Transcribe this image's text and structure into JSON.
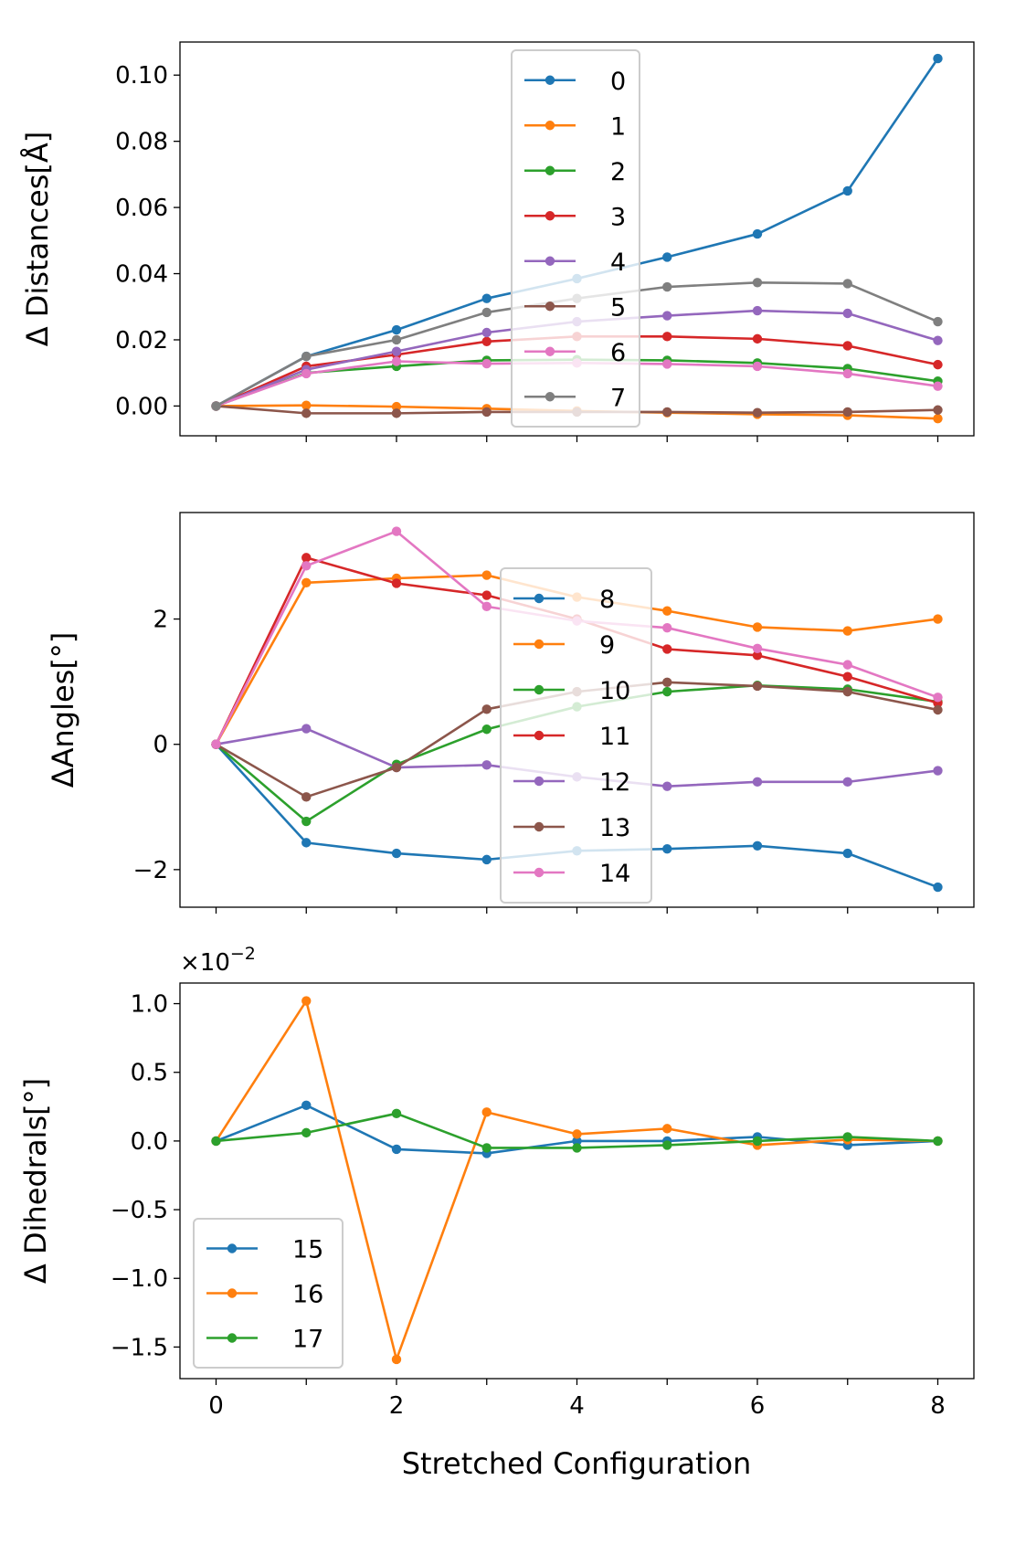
{
  "figure": {
    "xlabel": "Stretched Configuration"
  },
  "chart_data": [
    {
      "type": "line",
      "title": "",
      "xlabel": "",
      "ylabel": "Δ Distances[Å]",
      "xlim": [
        -0.4,
        8.4
      ],
      "ylim": [
        -0.009,
        0.11
      ],
      "x": [
        0,
        1,
        2,
        3,
        4,
        5,
        6,
        7,
        8
      ],
      "xticks": [
        0,
        1,
        2,
        3,
        4,
        5,
        6,
        7,
        8
      ],
      "show_xticklabels": false,
      "yticks": [
        0.0,
        0.02,
        0.04,
        0.06,
        0.08,
        0.1
      ],
      "ytick_labels": [
        "0.00",
        "0.02",
        "0.04",
        "0.06",
        "0.08",
        "0.10"
      ],
      "legend_position": "upper-center",
      "series": [
        {
          "name": "0",
          "color": "#1f77b4",
          "values": [
            0,
            0.015,
            0.023,
            0.0325,
            0.0385,
            0.045,
            0.052,
            0.065,
            0.105
          ]
        },
        {
          "name": "1",
          "color": "#ff7f0e",
          "values": [
            0,
            0.0002,
            -0.0002,
            -0.0008,
            -0.0015,
            -0.002,
            -0.0025,
            -0.0028,
            -0.0038
          ]
        },
        {
          "name": "2",
          "color": "#2ca02c",
          "values": [
            0,
            0.01,
            0.012,
            0.0138,
            0.014,
            0.0138,
            0.013,
            0.0113,
            0.0075
          ]
        },
        {
          "name": "3",
          "color": "#d62728",
          "values": [
            0,
            0.012,
            0.0155,
            0.0195,
            0.021,
            0.021,
            0.0203,
            0.0182,
            0.0125
          ]
        },
        {
          "name": "4",
          "color": "#9467bd",
          "values": [
            0,
            0.011,
            0.0165,
            0.0222,
            0.0255,
            0.0273,
            0.0288,
            0.028,
            0.0198
          ]
        },
        {
          "name": "5",
          "color": "#8c564b",
          "values": [
            0,
            -0.0022,
            -0.0022,
            -0.0018,
            -0.0018,
            -0.0018,
            -0.002,
            -0.0018,
            -0.0012
          ]
        },
        {
          "name": "6",
          "color": "#e377c2",
          "values": [
            0,
            0.0098,
            0.0135,
            0.0128,
            0.013,
            0.0127,
            0.012,
            0.0098,
            0.006
          ]
        },
        {
          "name": "7",
          "color": "#7f7f7f",
          "values": [
            0,
            0.015,
            0.02,
            0.0283,
            0.0325,
            0.036,
            0.0373,
            0.037,
            0.0255
          ]
        }
      ]
    },
    {
      "type": "line",
      "title": "",
      "xlabel": "",
      "ylabel": "ΔAngles[°]",
      "xlim": [
        -0.4,
        8.4
      ],
      "ylim": [
        -2.6,
        3.7
      ],
      "x": [
        0,
        1,
        2,
        3,
        4,
        5,
        6,
        7,
        8
      ],
      "xticks": [
        0,
        1,
        2,
        3,
        4,
        5,
        6,
        7,
        8
      ],
      "show_xticklabels": false,
      "yticks": [
        -2,
        0,
        2
      ],
      "ytick_labels": [
        "−2",
        "0",
        "2"
      ],
      "legend_position": "center",
      "series": [
        {
          "name": "8",
          "color": "#1f77b4",
          "values": [
            0,
            -1.57,
            -1.74,
            -1.84,
            -1.7,
            -1.67,
            -1.62,
            -1.74,
            -2.28
          ]
        },
        {
          "name": "9",
          "color": "#ff7f0e",
          "values": [
            0,
            2.58,
            2.65,
            2.7,
            2.35,
            2.13,
            1.87,
            1.81,
            2.0
          ]
        },
        {
          "name": "10",
          "color": "#2ca02c",
          "values": [
            0,
            -1.23,
            -0.32,
            0.24,
            0.6,
            0.84,
            0.94,
            0.88,
            0.68
          ]
        },
        {
          "name": "11",
          "color": "#d62728",
          "values": [
            0,
            2.98,
            2.57,
            2.38,
            2.0,
            1.52,
            1.42,
            1.08,
            0.66
          ]
        },
        {
          "name": "12",
          "color": "#9467bd",
          "values": [
            0,
            0.25,
            -0.37,
            -0.33,
            -0.52,
            -0.67,
            -0.6,
            -0.6,
            -0.42
          ]
        },
        {
          "name": "13",
          "color": "#8c564b",
          "values": [
            0,
            -0.84,
            -0.37,
            0.56,
            0.84,
            0.99,
            0.93,
            0.84,
            0.55
          ]
        },
        {
          "name": "14",
          "color": "#e377c2",
          "values": [
            0,
            2.85,
            3.4,
            2.2,
            1.97,
            1.86,
            1.53,
            1.27,
            0.75
          ]
        }
      ]
    },
    {
      "type": "line",
      "title": "",
      "xlabel": "Stretched Configuration",
      "ylabel": "Δ Dihedrals[°]",
      "xlim": [
        -0.4,
        8.4
      ],
      "ylim": [
        -1.73,
        1.15
      ],
      "x": [
        0,
        1,
        2,
        3,
        4,
        5,
        6,
        7,
        8
      ],
      "xticks": [
        0,
        2,
        4,
        6,
        8
      ],
      "xtick_labels": [
        "0",
        "2",
        "4",
        "6",
        "8"
      ],
      "minor_xticks": [
        1,
        3,
        5,
        7
      ],
      "show_xticklabels": true,
      "yticks": [
        -1.5,
        -1.0,
        -0.5,
        0.0,
        0.5,
        1.0
      ],
      "ytick_labels": [
        "−1.5",
        "−1.0",
        "−0.5",
        "0.0",
        "0.5",
        "1.0"
      ],
      "y_offset_text": "×10",
      "y_offset_exponent": "−2",
      "legend_position": "lower-left",
      "series": [
        {
          "name": "15",
          "color": "#1f77b4",
          "values": [
            0,
            0.26,
            -0.06,
            -0.09,
            0.0,
            0.0,
            0.03,
            -0.03,
            0.0
          ]
        },
        {
          "name": "16",
          "color": "#ff7f0e",
          "values": [
            0,
            1.02,
            -1.59,
            0.21,
            0.05,
            0.09,
            -0.03,
            0.01,
            0.0
          ]
        },
        {
          "name": "17",
          "color": "#2ca02c",
          "values": [
            0,
            0.06,
            0.2,
            -0.05,
            -0.05,
            -0.03,
            0.0,
            0.03,
            0.0
          ]
        }
      ]
    }
  ]
}
